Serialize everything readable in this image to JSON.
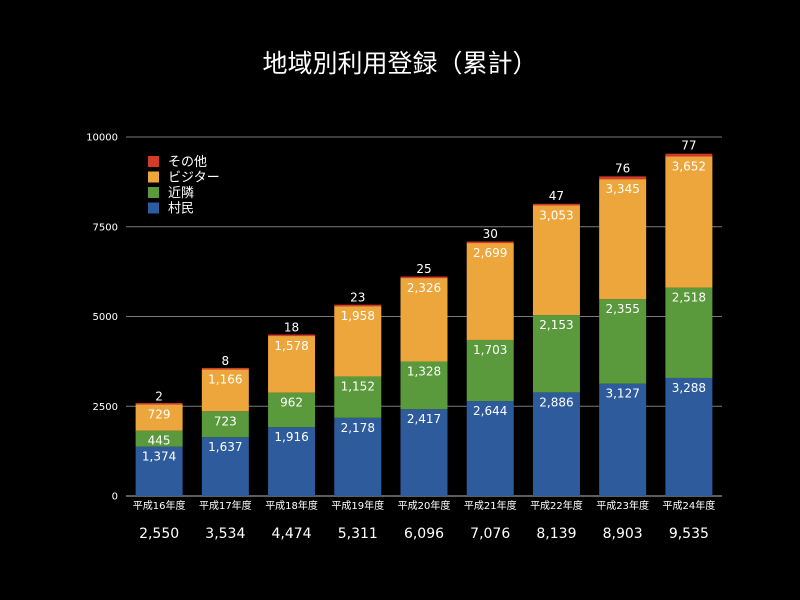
{
  "chart_data": {
    "type": "bar",
    "stacked": true,
    "title": "地域別利用登録（累計）",
    "categories": [
      "平成16年度",
      "平成17年度",
      "平成18年度",
      "平成19年度",
      "平成20年度",
      "平成21年度",
      "平成22年度",
      "平成23年度",
      "平成24年度"
    ],
    "series": [
      {
        "name": "村民",
        "color": "#2e5b9b",
        "values": [
          1374,
          1637,
          1916,
          2178,
          2417,
          2644,
          2886,
          3127,
          3288
        ],
        "labels": [
          "1,374",
          "1,637",
          "1,916",
          "2,178",
          "2,417",
          "2,644",
          "2,886",
          "3,127",
          "3,288"
        ]
      },
      {
        "name": "近隣",
        "color": "#5a9a3c",
        "values": [
          445,
          723,
          962,
          1152,
          1328,
          1703,
          2153,
          2355,
          2518
        ],
        "labels": [
          "445",
          "723",
          "962",
          "1,152",
          "1,328",
          "1,703",
          "2,153",
          "2,355",
          "2,518"
        ]
      },
      {
        "name": "ビジター",
        "color": "#eca63c",
        "values": [
          729,
          1166,
          1578,
          1958,
          2326,
          2699,
          3053,
          3345,
          3652
        ],
        "labels": [
          "729",
          "1,166",
          "1,578",
          "1,958",
          "2,326",
          "2,699",
          "3,053",
          "3,345",
          "3,652"
        ]
      },
      {
        "name": "その他",
        "color": "#d23a2a",
        "values": [
          2,
          8,
          18,
          23,
          25,
          30,
          47,
          76,
          77
        ],
        "labels": [
          "2",
          "8",
          "18",
          "23",
          "25",
          "30",
          "47",
          "76",
          "77"
        ]
      }
    ],
    "totals": [
      "2,550",
      "3,534",
      "4,474",
      "5,311",
      "6,096",
      "7,076",
      "8,139",
      "8,903",
      "9,535"
    ],
    "ylim": [
      0,
      10000
    ],
    "yticks": [
      0,
      2500,
      5000,
      7500,
      10000
    ],
    "ytick_labels": [
      "0",
      "2500",
      "5000",
      "7500",
      "10000"
    ],
    "legend_order": [
      "その他",
      "ビジター",
      "近隣",
      "村民"
    ],
    "legend_position": "top-left",
    "grid": true
  }
}
